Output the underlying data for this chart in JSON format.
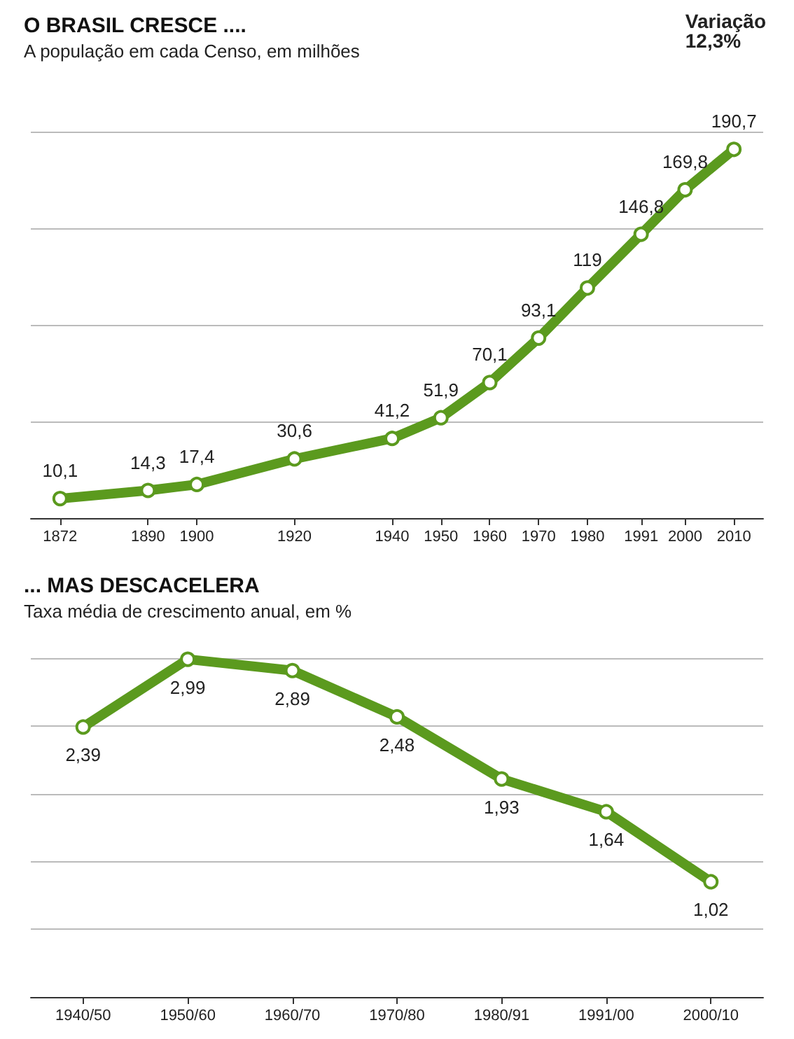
{
  "chart_data": [
    {
      "type": "line",
      "title": "O BRASIL CRESCE ....",
      "subtitle": "A população em cada Censo, em milhões",
      "annotations": [
        "Variação\n12,3%"
      ],
      "x": [
        1872,
        1890,
        1900,
        1920,
        1940,
        1950,
        1960,
        1970,
        1980,
        1991,
        2000,
        2010
      ],
      "series": [
        {
          "color": "#5b9a1e",
          "values": [
            10.1,
            14.3,
            17.4,
            30.6,
            41.2,
            51.9,
            70.1,
            93.1,
            119,
            146.8,
            169.8,
            190.7
          ],
          "value_labels": [
            "10,1",
            "14,3",
            "17,4",
            "30,6",
            "41,2",
            "51,9",
            "70,1",
            "93,1",
            "119",
            "146,8",
            "169,8",
            "190,7"
          ]
        }
      ],
      "xlim": [
        1866,
        2016
      ],
      "xticks": [
        1872,
        1890,
        1900,
        1920,
        1940,
        1950,
        1960,
        1970,
        1980,
        1991,
        2000,
        2010
      ],
      "yticks": [
        {
          "value": 50,
          "label": null
        },
        {
          "value": 100,
          "label": null
        },
        {
          "value": 150,
          "label": null
        },
        {
          "value": 200,
          "label": null
        }
      ],
      "tick_labels": "x",
      "grid": "y",
      "marker": "circle",
      "line_style": "solid"
    },
    {
      "type": "line",
      "title": "... MAS DESCACELERA",
      "subtitle": "Taxa média de crescimento anual, em %",
      "categories": [
        "1940/50",
        "1950/60",
        "1960/70",
        "1970/80",
        "1980/91",
        "1991/00",
        "2000/10"
      ],
      "series": [
        {
          "color": "#5b9a1e",
          "values": [
            2.39,
            2.99,
            2.89,
            2.48,
            1.93,
            1.64,
            1.02
          ],
          "value_labels": [
            "2,39",
            "2,99",
            "2,89",
            "2,48",
            "1,93",
            "1,64",
            "1,02"
          ]
        }
      ],
      "yticks": [
        {
          "value": 0.6,
          "label": null
        },
        {
          "value": 1.2,
          "label": null
        },
        {
          "value": 1.8,
          "label": null
        },
        {
          "value": 2.4,
          "label": null
        },
        {
          "value": 3.0,
          "label": null
        }
      ],
      "tick_labels": "x",
      "grid": "y",
      "marker": "circle",
      "line_style": "solid"
    }
  ]
}
